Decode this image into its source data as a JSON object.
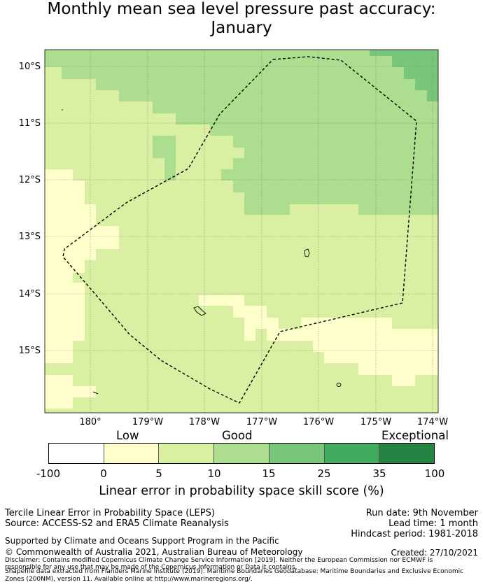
{
  "title_line1": "Monthly mean sea level pressure past accuracy:",
  "title_line2": "January",
  "map": {
    "latitude_labels": [
      "10°S",
      "11°S",
      "12°S",
      "13°S",
      "14°S",
      "15°S"
    ],
    "longitude_labels": [
      "180°",
      "179°W",
      "178°W",
      "177°W",
      "176°W",
      "175°W",
      "174°W"
    ],
    "colors": {
      "low": "#ffffcc",
      "good": "#d9f0a3",
      "good_plus": "#addd8e",
      "very_good": "#78c679",
      "excellent": "#41ab5d",
      "exceptional": "#238443",
      "no_skill": "#ffffff"
    }
  },
  "legend": {
    "category_low": "Low",
    "category_good": "Good",
    "category_exceptional": "Exceptional",
    "bins": [
      "#ffffff",
      "#ffffcc",
      "#d9f0a3",
      "#addd8e",
      "#78c679",
      "#41ab5d",
      "#238443"
    ],
    "ticks": [
      "-100",
      "0",
      "5",
      "10",
      "15",
      "25",
      "35",
      "100"
    ],
    "axis_label": "Linear error in probability space skill score (%)"
  },
  "footer": {
    "method": "Tercile Linear Error in Probability Space (LEPS)",
    "source": "Source: ACCESS-S2 and ERA5 Climate Reanalysis",
    "run_date": "Run date: 9th November",
    "lead_time": "Lead time: 1 month",
    "hindcast": "Hindcast period: 1981-2018",
    "support": "Supported by Climate and Oceans Support Program in the Pacific",
    "copyright": "© Commonwealth of Australia 2021, Australian Bureau of Meteorology",
    "created": "Created: 27/10/2021",
    "disclaimer1": "Disclaimer: Contains modified Copernicus Climate Change Service Information [2019]. Neither the European Commission nor ECMWF is",
    "disclaimer2": "responsible for any use that may be made of the Copernicus Information or Data it contains.",
    "disclaimer3": "Shapefile data extracted from Flanders Marine Institute (2019). Maritime Boundaries Geodatabase: Maritime Boundaries and Exclusive Economic",
    "disclaimer4": "Zones (200NM), version 11. Available online at http://www.marineregions.org/."
  }
}
